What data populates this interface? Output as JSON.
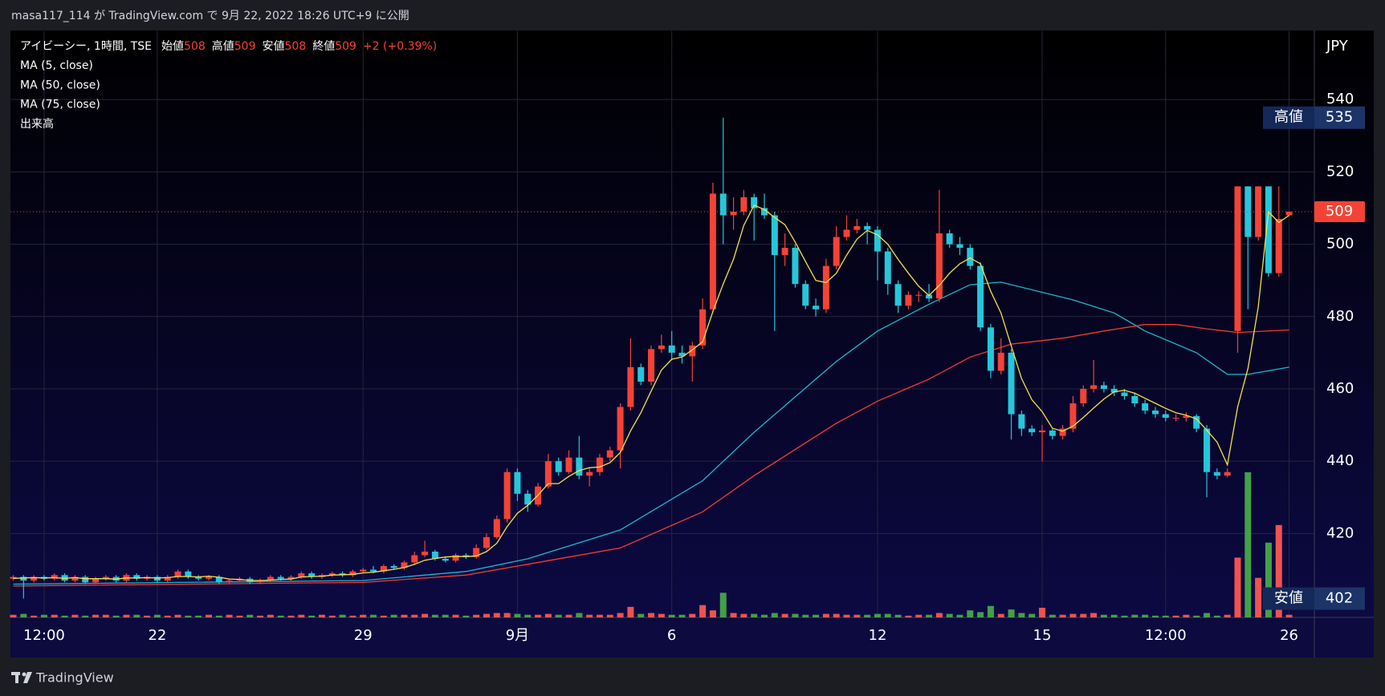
{
  "publish_note": "masa117_114 が TradingView.com で 9月 22, 2022 18:26 UTC+9 に公開",
  "brand": "TradingView",
  "chart_data": {
    "type": "candlestick",
    "symbol": "アイビーシー, 1時間, TSE",
    "ohlc_labels": [
      "始値",
      "高値",
      "安値",
      "終値"
    ],
    "change": "+2 (+0.39%)",
    "currency": "JPY",
    "up_color": "#f44336",
    "down_color": "#26c6da",
    "ylim": [
      396.8,
      559
    ],
    "yticks": [
      420,
      440,
      460,
      480,
      500,
      520,
      540
    ],
    "grid": true,
    "categories": [
      null,
      null,
      null,
      "12:00",
      null,
      null,
      null,
      null,
      null,
      null,
      null,
      null,
      null,
      null,
      "22",
      null,
      null,
      null,
      null,
      null,
      null,
      null,
      null,
      null,
      null,
      null,
      null,
      null,
      null,
      null,
      null,
      null,
      null,
      null,
      "29",
      null,
      null,
      null,
      null,
      null,
      null,
      null,
      null,
      null,
      null,
      null,
      null,
      null,
      null,
      "9月",
      null,
      null,
      null,
      null,
      null,
      null,
      null,
      null,
      null,
      null,
      null,
      null,
      null,
      null,
      "6",
      null,
      null,
      null,
      null,
      null,
      null,
      null,
      null,
      null,
      null,
      null,
      null,
      null,
      null,
      null,
      null,
      null,
      null,
      null,
      "12",
      null,
      null,
      null,
      null,
      null,
      null,
      null,
      null,
      null,
      null,
      null,
      null,
      null,
      null,
      null,
      "15",
      null,
      null,
      null,
      null,
      null,
      null,
      null,
      null,
      null,
      null,
      null,
      "12:00",
      null,
      null,
      null,
      null,
      null,
      null,
      null,
      null,
      null,
      null,
      null,
      "26"
    ],
    "open": [
      407.5,
      408,
      407,
      408,
      407.5,
      408.5,
      407,
      408,
      406.5,
      407.5,
      408,
      407,
      408.5,
      407.5,
      408,
      407,
      408,
      409.5,
      408,
      407.5,
      408,
      406.5,
      407,
      407.5,
      406.5,
      407,
      408,
      407.5,
      408,
      409,
      408,
      408.5,
      409,
      408.5,
      409.5,
      410,
      409.5,
      411,
      410.5,
      412,
      414,
      415,
      413,
      412.5,
      414,
      413.5,
      416,
      419,
      424,
      437,
      431,
      428,
      433,
      440,
      437,
      441,
      436,
      437,
      441,
      443,
      455,
      466,
      462,
      471,
      472,
      470,
      469,
      472,
      482,
      514,
      508,
      509,
      513,
      510,
      508,
      497,
      499,
      489,
      483,
      482,
      494,
      502,
      504,
      505,
      504,
      498,
      489,
      483,
      486,
      486,
      485,
      503,
      500,
      499,
      494,
      477,
      465,
      470,
      453,
      449,
      448,
      448.5,
      447,
      449,
      456,
      460,
      461,
      460,
      459,
      458,
      456,
      454,
      453,
      452,
      452,
      452.5,
      449,
      437,
      436,
      476,
      516,
      502,
      516,
      492,
      508
    ],
    "high": [
      408.5,
      408.5,
      408.5,
      408.5,
      409,
      409,
      408.5,
      408.5,
      408,
      408.5,
      408.5,
      409,
      409,
      408.5,
      408.5,
      408.5,
      410,
      410,
      408.5,
      408.5,
      408.5,
      407.5,
      408,
      408,
      407.5,
      408.5,
      408.5,
      408.5,
      409.5,
      409.5,
      409,
      409.5,
      409.5,
      410,
      410.5,
      411,
      411.5,
      411.5,
      412.5,
      415,
      418,
      415.5,
      413.5,
      414.5,
      414.5,
      417,
      420,
      425,
      438,
      438,
      432,
      434,
      442,
      441,
      443,
      447,
      438,
      442,
      444,
      456,
      474,
      467,
      472,
      475,
      476,
      472,
      473,
      485,
      517,
      535,
      513,
      515,
      514,
      514,
      509,
      503,
      500,
      490,
      485,
      496,
      505,
      508,
      507,
      506,
      505,
      499,
      490,
      487,
      487,
      489,
      515,
      504,
      502,
      500,
      495,
      478,
      474,
      471,
      454,
      450,
      450,
      449,
      450,
      458,
      461,
      468,
      462,
      461,
      460,
      459,
      457,
      455,
      454,
      453,
      453.5,
      453,
      450,
      438,
      438,
      516,
      516,
      516,
      516,
      516,
      509
    ],
    "low": [
      407,
      402,
      406.5,
      407,
      407,
      406.5,
      406.5,
      406,
      406,
      407,
      406.5,
      406.5,
      407,
      407,
      406.5,
      406.5,
      407.5,
      407.5,
      407,
      407,
      406,
      406,
      406.5,
      406,
      406,
      406.5,
      407,
      407,
      407.5,
      407.5,
      407.5,
      408,
      408,
      408,
      409,
      409,
      409,
      410,
      410,
      411.5,
      413.5,
      412.5,
      412,
      412,
      413,
      413,
      415.5,
      418.5,
      423,
      429,
      426,
      427.5,
      432.5,
      436,
      436.5,
      435,
      433,
      436,
      440,
      438,
      454,
      461,
      461,
      470,
      468,
      467,
      462,
      471,
      481,
      500,
      504,
      508,
      501,
      507,
      476,
      494,
      488,
      482,
      480,
      481,
      493,
      501,
      503,
      500,
      490,
      486,
      481,
      482,
      484,
      484,
      484,
      499,
      497,
      493,
      476,
      463,
      464,
      446,
      447,
      447,
      440,
      446,
      446,
      448,
      455,
      459,
      459,
      458,
      457,
      455,
      453,
      452,
      451,
      451,
      451,
      448,
      430,
      435,
      435.5,
      470,
      482,
      501,
      491,
      491,
      508
    ],
    "close": [
      408,
      407,
      408,
      407.5,
      408.5,
      407,
      408,
      406.5,
      407.5,
      408,
      407,
      408.5,
      407.5,
      408,
      407,
      408,
      409.5,
      408,
      407.5,
      408,
      406.5,
      407,
      407.5,
      406.5,
      407,
      408,
      407.5,
      408,
      409,
      408,
      408.5,
      409,
      408.5,
      409.5,
      410,
      409.5,
      411,
      410.5,
      412,
      414,
      415,
      413,
      412.5,
      414,
      413.5,
      416,
      419,
      424,
      437,
      431,
      428,
      433,
      440,
      437,
      441,
      436,
      437,
      441,
      443,
      455,
      466,
      462,
      471,
      472,
      470,
      469,
      472,
      482,
      514,
      508,
      509,
      513,
      510,
      508,
      497,
      499,
      489,
      483,
      482,
      494,
      502,
      504,
      505,
      504,
      498,
      489,
      483,
      486,
      486,
      485,
      503,
      500,
      499,
      494,
      477,
      465,
      470,
      453,
      449,
      448,
      448.5,
      447,
      449,
      456,
      460,
      461,
      460,
      459,
      458,
      456,
      454,
      453,
      452,
      452,
      452.5,
      449,
      437,
      436,
      437,
      516,
      502,
      516,
      492,
      507,
      509
    ],
    "volume": {
      "name": "出来高",
      "up_color": "#ef5350",
      "down_color": "#43a047",
      "values": [
        3,
        4,
        2,
        3,
        3,
        2,
        3,
        2,
        3,
        3,
        2,
        3,
        3,
        2,
        3,
        2,
        3,
        2,
        2,
        3,
        2,
        3,
        2,
        3,
        2,
        3,
        2,
        2,
        3,
        2,
        3,
        2,
        3,
        2,
        3,
        3,
        2,
        3,
        3,
        3,
        4,
        3,
        3,
        3,
        2,
        3,
        4,
        5,
        5,
        4,
        3,
        3,
        4,
        3,
        3,
        5,
        3,
        3,
        3,
        5,
        12,
        4,
        5,
        4,
        3,
        3,
        4,
        14,
        8,
        28,
        5,
        4,
        4,
        3,
        5,
        4,
        4,
        3,
        3,
        4,
        4,
        3,
        3,
        3,
        4,
        4,
        3,
        2,
        3,
        3,
        5,
        4,
        3,
        8,
        6,
        13,
        4,
        9,
        5,
        4,
        11,
        3,
        3,
        4,
        4,
        5,
        3,
        3,
        2,
        3,
        3,
        2,
        2,
        2,
        3,
        2,
        5,
        2,
        3,
        68,
        165,
        45,
        85,
        105,
        3
      ]
    },
    "series": [
      {
        "name": "MA (5, close)",
        "color": "#f5e04a",
        "values": [
          407.6,
          407.7,
          407.8,
          407.7,
          407.8,
          407.6,
          407.8,
          407.5,
          407.5,
          407.5,
          407.4,
          407.7,
          407.7,
          407.8,
          407.7,
          407.8,
          408.1,
          408.1,
          408.0,
          408.2,
          407.9,
          407.4,
          407.3,
          407.0,
          407.0,
          407.1,
          407.3,
          407.4,
          408.0,
          408.1,
          408.2,
          408.5,
          408.6,
          408.7,
          409.1,
          409.3,
          409.7,
          410.1,
          410.6,
          411.5,
          412.6,
          413.1,
          413.5,
          413.7,
          413.6,
          413.8,
          415.0,
          417.3,
          421.9,
          425.6,
          427.8,
          430.6,
          433.8,
          433.8,
          435.8,
          437.4,
          438.2,
          438.4,
          439.6,
          442.4,
          448.4,
          453.4,
          459.4,
          465.2,
          468.2,
          468.8,
          470.8,
          473,
          481.4,
          489,
          495.8,
          505.2,
          510.8,
          509.6,
          507.4,
          505.4,
          500.6,
          495.2,
          490,
          489.4,
          492,
          497,
          501.4,
          503.8,
          502.6,
          500,
          495.8,
          492,
          488.4,
          485.8,
          488.6,
          492,
          494.6,
          496.2,
          494.6,
          487,
          481,
          471.8,
          462.8,
          457,
          453.7,
          449.1,
          448.3,
          449.7,
          452.1,
          454.7,
          457.2,
          459.2,
          459.6,
          458.8,
          457.4,
          456,
          454.6,
          453.4,
          452.7,
          451.7,
          448.6,
          445.3,
          439,
          455,
          465.6,
          482.6,
          509,
          506,
          508
        ]
      },
      {
        "name": "MA (50, close)",
        "color": "#1fb8d0",
        "x": [
          0,
          34,
          44,
          50,
          59,
          67,
          72,
          80,
          84,
          89,
          93,
          96,
          103,
          107,
          110,
          115,
          118,
          120,
          124
        ],
        "values": [
          406,
          407,
          409.5,
          413,
          421,
          434.6,
          448,
          467.6,
          476,
          483.4,
          488.8,
          489.5,
          484.6,
          481,
          476,
          470,
          464,
          464,
          466
        ]
      },
      {
        "name": "MA (75, close)",
        "color": "#f23b30",
        "x": [
          0,
          34,
          44,
          50,
          59,
          67,
          72,
          80,
          84,
          89,
          93,
          97,
          102,
          106,
          110,
          113,
          116,
          119,
          124
        ],
        "values": [
          405.5,
          406.5,
          408.5,
          411.5,
          416,
          426,
          436,
          450.5,
          456.6,
          462.7,
          468.8,
          472.4,
          474,
          476,
          477.8,
          477.8,
          476.6,
          475.6,
          476.3
        ]
      }
    ]
  }
}
